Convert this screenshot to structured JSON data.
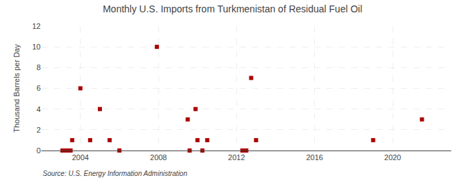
{
  "chart_data": {
    "type": "scatter",
    "title": "Monthly U.S. Imports from Turkmenistan of Residual Fuel Oil",
    "ylabel": "Thousand Barrels per Day",
    "annotations": [
      "Source: U.S. Energy Information Administration"
    ],
    "x": [
      2003.08,
      2003.17,
      2003.25,
      2003.33,
      2003.42,
      2003.5,
      2003.58,
      2004.0,
      2004.5,
      2005.0,
      2005.5,
      2006.0,
      2007.92,
      2009.5,
      2009.6,
      2009.9,
      2010.0,
      2010.25,
      2010.5,
      2012.3,
      2012.42,
      2012.5,
      2012.75,
      2013.0,
      2019.0,
      2021.5
    ],
    "values": [
      0,
      0,
      0,
      0,
      0,
      0,
      1,
      6,
      1,
      4,
      1,
      0,
      10,
      3,
      0,
      4,
      1,
      0,
      1,
      0,
      0,
      0,
      7,
      1,
      1,
      3
    ],
    "color": "#aa0000",
    "marker": "square",
    "xlim": [
      2002.0,
      2023.0
    ],
    "ylim": [
      0,
      12
    ],
    "xticks": [
      2004,
      2008,
      2012,
      2016,
      2020
    ],
    "yticks": [
      0,
      2,
      4,
      6,
      8,
      10,
      12
    ],
    "grid": true
  }
}
